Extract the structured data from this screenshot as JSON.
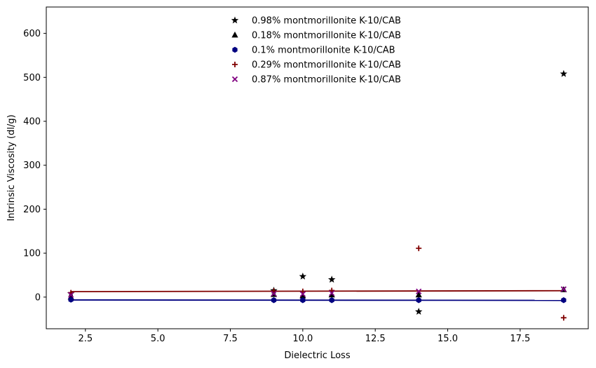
{
  "chart_data": {
    "type": "scatter",
    "title": "",
    "xlabel": "Dielectric Loss",
    "ylabel": "Intrinsic Viscosity (dl/g)",
    "xlim": [
      1.15,
      19.85
    ],
    "ylim": [
      -72,
      660
    ],
    "x_ticks": [
      2.5,
      5.0,
      7.5,
      10.0,
      12.5,
      15.0,
      17.5
    ],
    "x_tick_labels": [
      "2.5",
      "5.0",
      "7.5",
      "10.0",
      "12.5",
      "15.0",
      "17.5"
    ],
    "y_ticks": [
      0,
      100,
      200,
      300,
      400,
      500,
      600
    ],
    "y_tick_labels": [
      "0",
      "100",
      "200",
      "300",
      "400",
      "500",
      "600"
    ],
    "grid": false,
    "legend_position": "top-center",
    "series": [
      {
        "name": "0.98% montmorillonite K-10/CAB",
        "marker": "star",
        "color": "#000000",
        "x": [
          2,
          9,
          10,
          11,
          14,
          19
        ],
        "y": [
          8,
          15,
          47,
          40,
          -33,
          508
        ]
      },
      {
        "name": "0.18% montmorillonite K-10/CAB",
        "marker": "triangle",
        "color": "#000000",
        "x": [
          2,
          9,
          10,
          11,
          14,
          19
        ],
        "y": [
          0,
          6,
          3,
          5,
          5,
          17
        ]
      },
      {
        "name": "0.1% montmorillonite K-10/CAB",
        "marker": "hexagon",
        "color": "#000080",
        "x": [
          2,
          9,
          10,
          11,
          14,
          19
        ],
        "y": [
          -6,
          -7,
          -7,
          -7,
          -7,
          -7
        ],
        "fit": {
          "x": [
            2,
            19
          ],
          "y": [
            -6.5,
            -7.5
          ]
        }
      },
      {
        "name": "0.29% montmorillonite K-10/CAB",
        "marker": "plus",
        "color": "#800000",
        "x": [
          2,
          9,
          10,
          11,
          14,
          19
        ],
        "y": [
          10,
          14,
          13,
          15,
          111,
          -47
        ],
        "fit": {
          "x": [
            2,
            19
          ],
          "y": [
            12.5,
            14.5
          ]
        }
      },
      {
        "name": "0.87% montmorillonite K-10/CAB",
        "marker": "x",
        "color": "#800080",
        "x": [
          2,
          9,
          10,
          11,
          14,
          19
        ],
        "y": [
          5,
          8,
          7,
          9,
          13,
          18
        ]
      }
    ]
  }
}
